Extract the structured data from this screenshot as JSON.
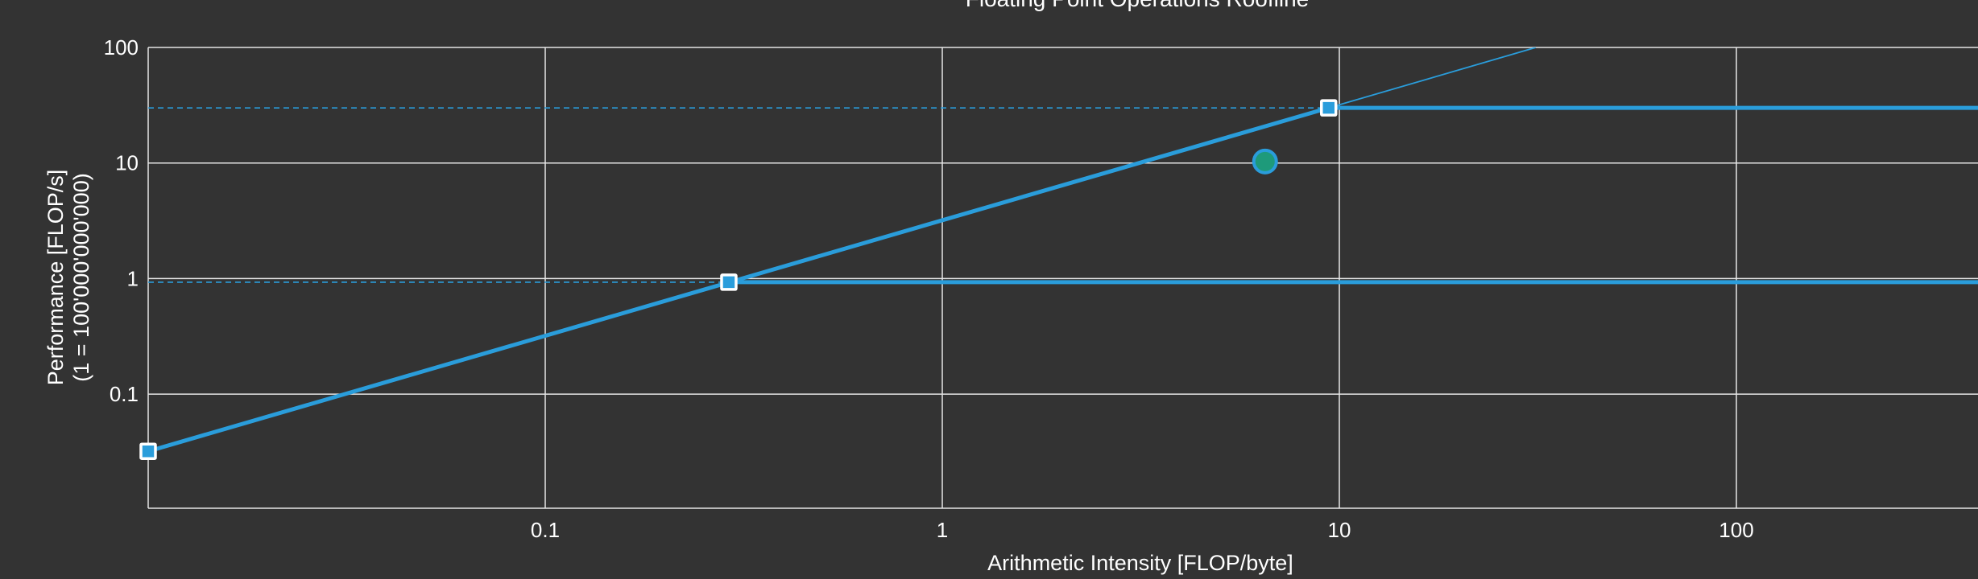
{
  "chart_data": {
    "type": "line",
    "title": "Floating Point Operations Roofline",
    "xlabel": "Arithmetic Intensity [FLOP/byte]",
    "ylabel": "Performance [FLOP/s]",
    "ylabel_sub": "(1 = 100'000'000'000)",
    "x_scale": "log",
    "y_scale": "log",
    "xlim": [
      0.01,
      450
    ],
    "ylim": [
      0.01,
      100
    ],
    "x_ticks": [
      {
        "value": 0.1,
        "label": "0.1"
      },
      {
        "value": 1,
        "label": "1"
      },
      {
        "value": 10,
        "label": "10"
      },
      {
        "value": 100,
        "label": "100"
      }
    ],
    "y_ticks": [
      {
        "value": 0.1,
        "label": "0.1"
      },
      {
        "value": 1,
        "label": "1"
      },
      {
        "value": 10,
        "label": "10"
      },
      {
        "value": 100,
        "label": "100"
      }
    ],
    "grid": true,
    "colors": {
      "background": "#333333",
      "grid": "#e6e6e6",
      "roof": "#2a9ddb",
      "point_fill": "#1e9a7a",
      "point_stroke": "#2a9ddb",
      "marker_fill": "#2a9ddb",
      "marker_stroke": "#ffffff"
    },
    "series": [
      {
        "kind": "memory-roof",
        "slope_bandwidth": 3.2,
        "x": [
          0.01,
          9.4
        ],
        "y": [
          0.032,
          30
        ]
      },
      {
        "kind": "memory-roof-extension",
        "x": [
          9.4,
          31.25
        ],
        "y": [
          30,
          100
        ]
      },
      {
        "kind": "compute-roof",
        "x": [
          9.4,
          450
        ],
        "y": [
          30,
          30
        ]
      },
      {
        "kind": "compute-roof",
        "x": [
          0.29,
          450
        ],
        "y": [
          0.93,
          0.93
        ]
      },
      {
        "kind": "dashed-reference",
        "x": [
          0.01,
          9.4
        ],
        "y": [
          30,
          30
        ]
      },
      {
        "kind": "dashed-reference",
        "x": [
          0.01,
          0.29
        ],
        "y": [
          0.93,
          0.93
        ]
      }
    ],
    "ridge_points": [
      {
        "x": 0.01,
        "y": 0.032
      },
      {
        "x": 0.29,
        "y": 0.93
      },
      {
        "x": 9.4,
        "y": 30
      }
    ],
    "points": [
      {
        "x": 6.5,
        "y": 10.3
      }
    ]
  }
}
